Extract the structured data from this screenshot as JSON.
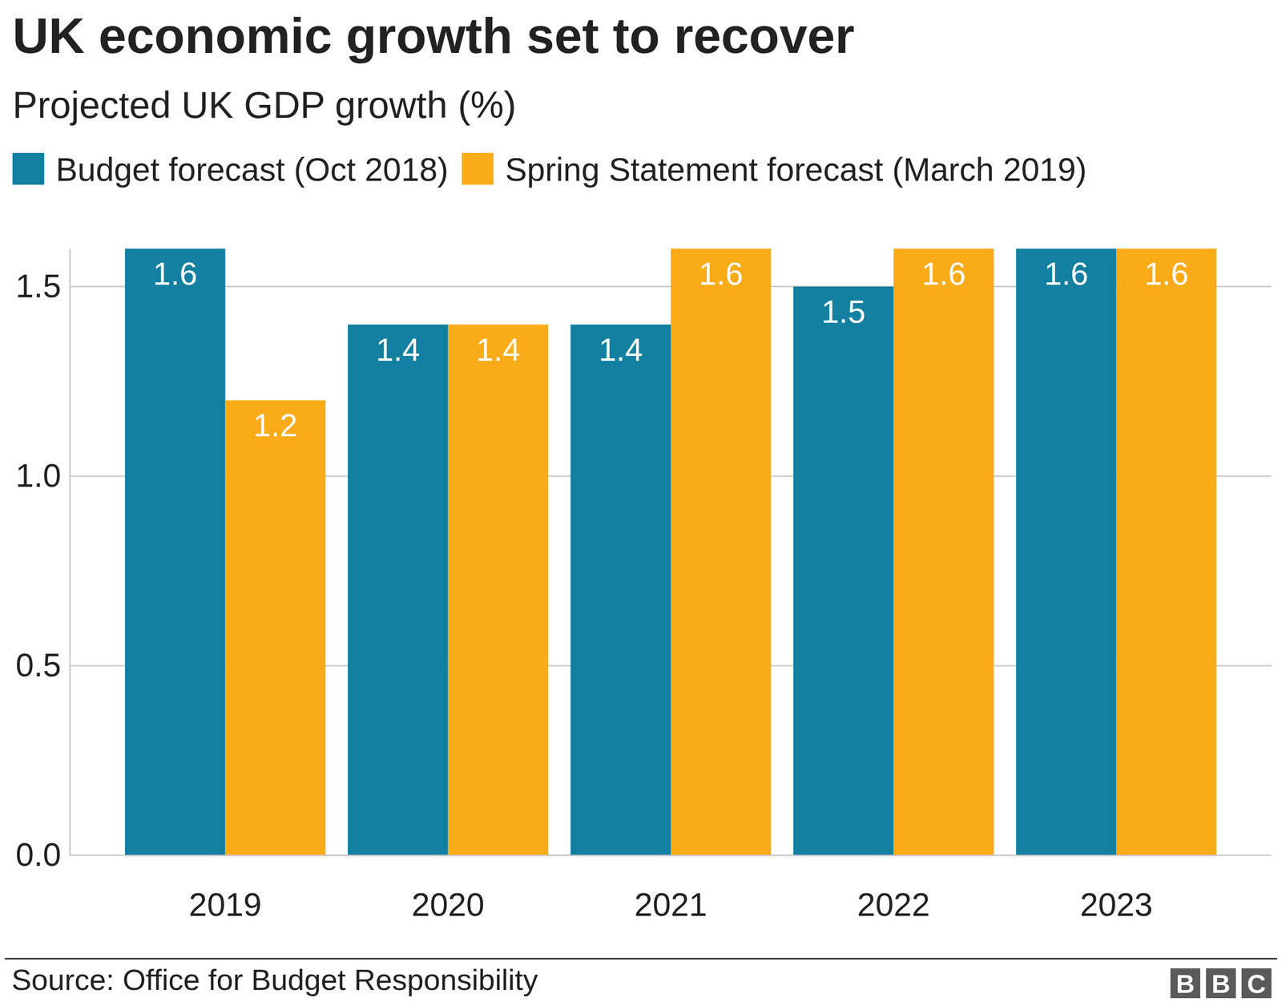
{
  "chart_data": {
    "type": "bar",
    "title": "UK economic growth set to recover",
    "subtitle": "Projected UK GDP growth (%)",
    "categories": [
      "2019",
      "2020",
      "2021",
      "2022",
      "2023"
    ],
    "series": [
      {
        "name": "Budget forecast (Oct 2018)",
        "color": "#1380a1",
        "values": [
          1.6,
          1.4,
          1.4,
          1.5,
          1.6
        ]
      },
      {
        "name": "Spring Statement forecast (March 2019)",
        "color": "#faab18",
        "values": [
          1.2,
          1.4,
          1.6,
          1.6,
          1.6
        ]
      }
    ],
    "ylim": [
      0,
      1.6
    ],
    "yticks": [
      {
        "value": 0,
        "label": "0.0"
      },
      0.5,
      {
        "value": 1,
        "label": "1.0"
      },
      1.5
    ],
    "grid": true,
    "legend": "top-left",
    "data_labels": true,
    "source": "Source: Office for Budget Responsibility",
    "logo": "BBC"
  }
}
